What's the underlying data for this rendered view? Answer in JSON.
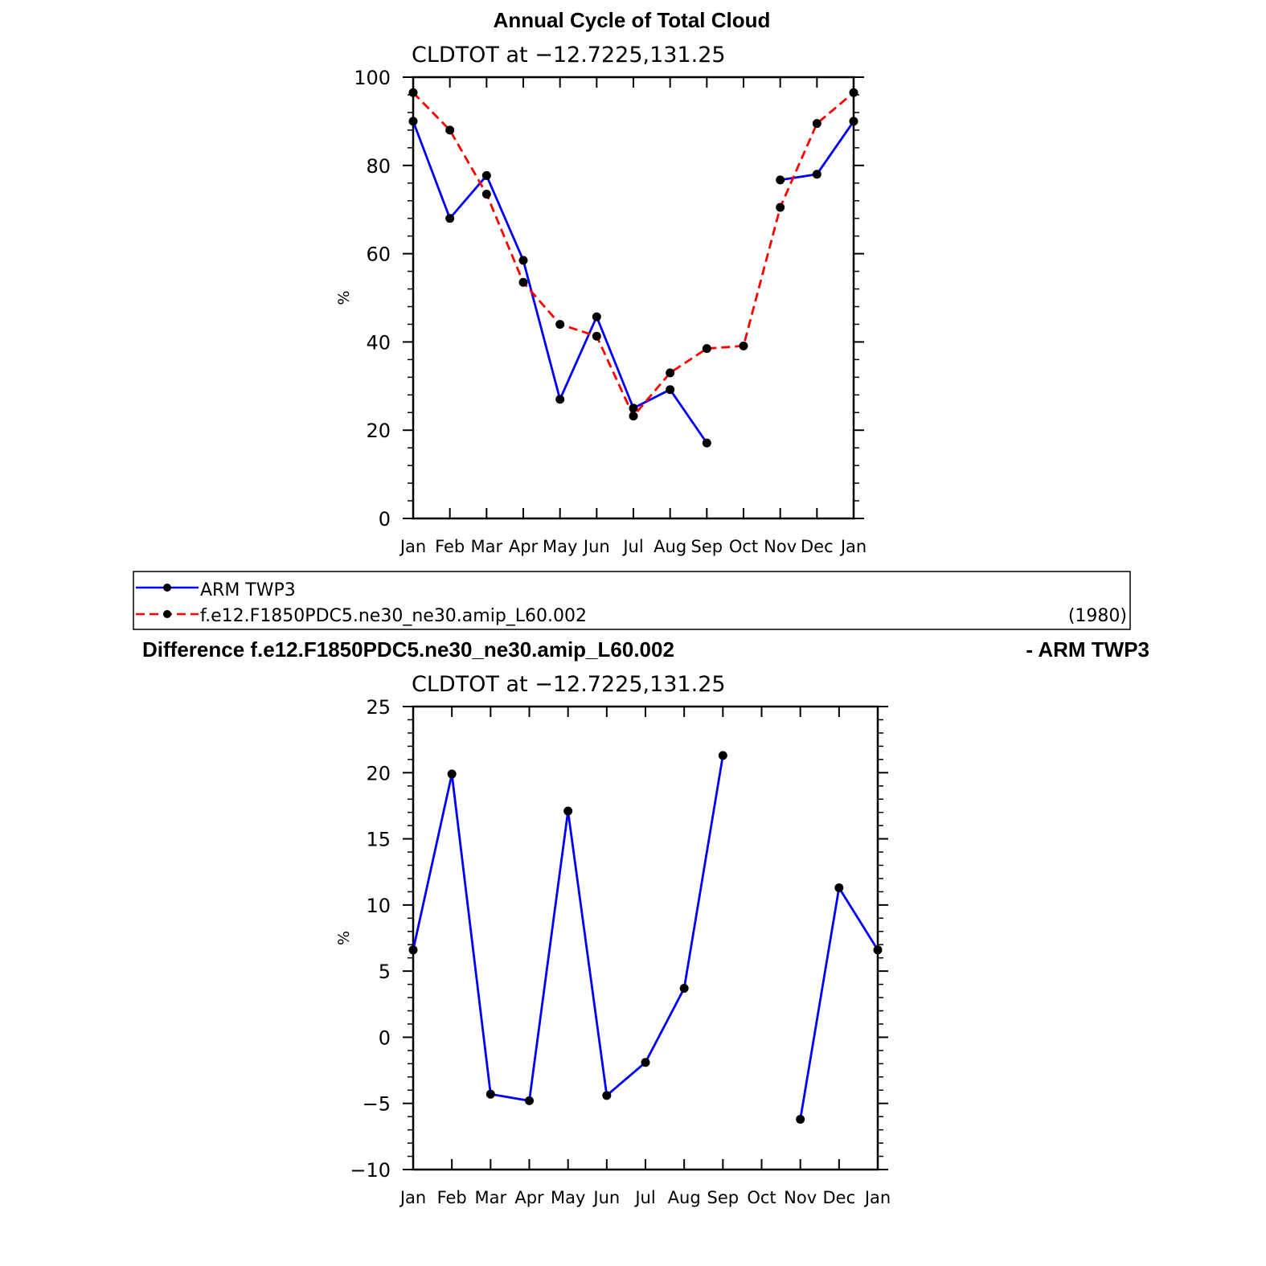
{
  "page": {
    "title": "Annual Cycle of Total Cloud",
    "diff_title_left": "Difference f.e12.F1850PDC5.ne30_ne30.amip_L60.002",
    "diff_title_right": "- ARM TWP3"
  },
  "legend": {
    "year": "(1980)"
  },
  "chart_data": [
    {
      "type": "line",
      "title": "CLDTOT at −12.7225,131.25",
      "xlabel": "",
      "ylabel": "%",
      "categories": [
        "Jan",
        "Feb",
        "Mar",
        "Apr",
        "May",
        "Jun",
        "Jul",
        "Aug",
        "Sep",
        "Oct",
        "Nov",
        "Dec",
        "Jan"
      ],
      "ylim": [
        0,
        100
      ],
      "yticks": [
        0,
        20,
        40,
        60,
        80,
        100
      ],
      "ytick_labels": [
        "0",
        "20",
        "40",
        "60",
        "80",
        "100"
      ],
      "grid": false,
      "legend_position": "below",
      "series": [
        {
          "name": "ARM TWP3",
          "color": "#0000ff",
          "dash": "solid",
          "values": [
            90,
            68,
            77.7,
            58.5,
            27,
            45.7,
            25,
            29.2,
            17.1,
            null,
            76.7,
            78,
            90
          ]
        },
        {
          "name": "f.e12.F1850PDC5.ne30_ne30.amip_L60.002",
          "color": "#ff0000",
          "dash": "dashed",
          "values": [
            96.5,
            88,
            73.5,
            53.5,
            44,
            41.3,
            23.2,
            33,
            38.5,
            39.1,
            70.5,
            89.5,
            96.5
          ]
        }
      ]
    },
    {
      "type": "line",
      "title": "CLDTOT at −12.7225,131.25",
      "xlabel": "",
      "ylabel": "%",
      "categories": [
        "Jan",
        "Feb",
        "Mar",
        "Apr",
        "May",
        "Jun",
        "Jul",
        "Aug",
        "Sep",
        "Oct",
        "Nov",
        "Dec",
        "Jan"
      ],
      "ylim": [
        -10,
        25
      ],
      "yticks": [
        -10,
        -5,
        0,
        5,
        10,
        15,
        20,
        25
      ],
      "ytick_labels": [
        "−10",
        "−5",
        "0",
        "5",
        "10",
        "15",
        "20",
        "25"
      ],
      "grid": false,
      "series": [
        {
          "color": "#0000ff",
          "dash": "solid",
          "values": [
            6.6,
            19.9,
            -4.3,
            -4.8,
            17.1,
            -4.4,
            -1.9,
            3.7,
            21.3,
            null,
            -6.2,
            11.3,
            6.6
          ]
        }
      ]
    }
  ]
}
